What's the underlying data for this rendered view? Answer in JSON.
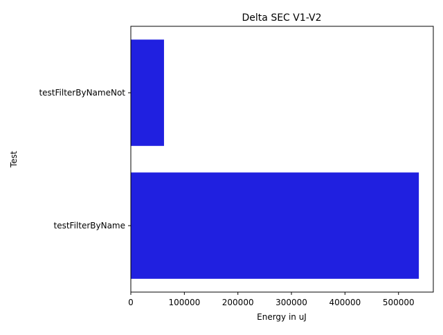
{
  "chart_data": {
    "type": "bar",
    "orientation": "horizontal",
    "title": "Delta SEC V1-V2",
    "xlabel": "Energy in uJ",
    "ylabel": "Test",
    "categories": [
      "testFilterByNameNot",
      "testFilterByName"
    ],
    "values": [
      62000,
      538000
    ],
    "xlim": [
      0,
      565000
    ],
    "xticks": [
      0,
      100000,
      200000,
      300000,
      400000,
      500000
    ],
    "xtick_labels": [
      "0",
      "100000",
      "200000",
      "300000",
      "400000",
      "500000"
    ],
    "grid": false,
    "legend": "none",
    "bar_color": "#2020e0"
  }
}
